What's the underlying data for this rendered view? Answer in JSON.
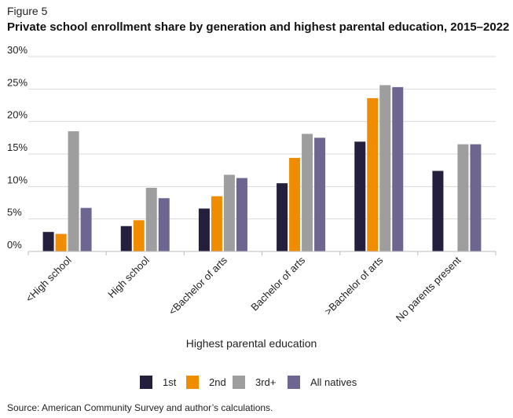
{
  "figure_label": "Figure 5",
  "source": "Source: American Community Survey and author’s calculations.",
  "colors": {
    "1st": "#231f3c",
    "2nd": "#f08c00",
    "3rd+": "#9e9e9e",
    "All natives": "#6e6690"
  },
  "chart_data": {
    "type": "bar",
    "title": "Private school enrollment share by generation and highest parental education, 2015–2022",
    "xlabel": "Highest parental education",
    "ylabel": "",
    "ylim": [
      0,
      30
    ],
    "yticks": [
      "0%",
      "5%",
      "10%",
      "15%",
      "20%",
      "25%",
      "30%"
    ],
    "grid": true,
    "legend_position": "bottom",
    "categories": [
      "<High school",
      "High school",
      "<Bachelor of arts",
      "Bachelor of arts",
      ">Bachelor of arts",
      "No parents present"
    ],
    "series": [
      {
        "name": "1st",
        "values": [
          3.0,
          3.9,
          6.6,
          10.5,
          16.9,
          12.4
        ]
      },
      {
        "name": "2nd",
        "values": [
          2.7,
          4.8,
          8.5,
          14.4,
          23.6,
          null
        ]
      },
      {
        "name": "3rd+",
        "values": [
          18.5,
          9.8,
          11.8,
          18.1,
          25.6,
          16.5
        ]
      },
      {
        "name": "All natives",
        "values": [
          6.7,
          8.2,
          11.3,
          17.5,
          25.3,
          16.5
        ]
      }
    ]
  }
}
